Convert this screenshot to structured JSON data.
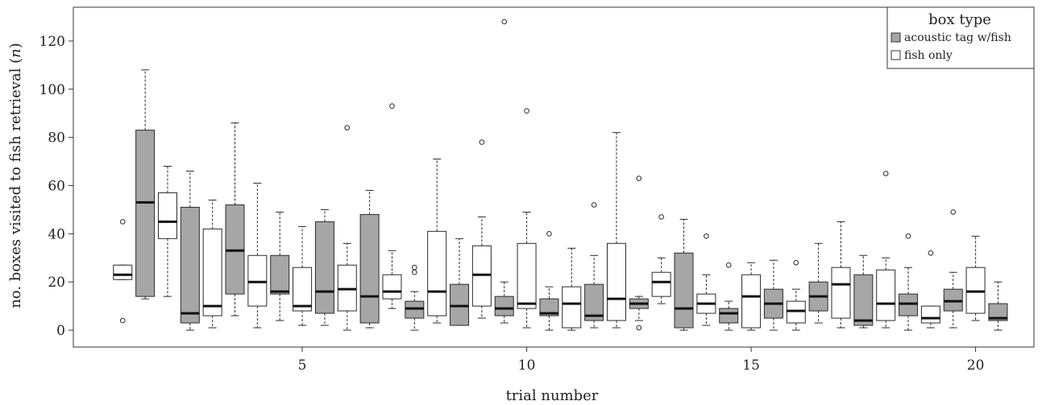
{
  "chart_data": {
    "type": "box",
    "xlabel": "trial number",
    "ylabel": "no. boxes visited to fish retrieval (n)",
    "ylabel_main": "no. boxes visited to fish retrieval (",
    "ylabel_var": "n",
    "ylabel_close": ")",
    "xlim": [
      -0.1,
      21.3
    ],
    "ylim": [
      -7,
      134
    ],
    "x_ticks": [
      5,
      10,
      15,
      20
    ],
    "y_ticks": [
      0,
      20,
      40,
      60,
      80,
      100,
      120
    ],
    "grid": false,
    "legend": {
      "title": "box type",
      "position": "top-right",
      "entries": [
        {
          "label": "acoustic tag w/fish",
          "color": "#a6a6a6"
        },
        {
          "label": "fish only",
          "color": "#ffffff"
        }
      ]
    },
    "colors": {
      "acoustic": "#a6a6a6",
      "fishonly": "#ffffff",
      "line": "#2a2a2a"
    },
    "boxes": [
      {
        "x": 1.0,
        "type": "fishonly",
        "min": 21,
        "q1": 21,
        "median": 23,
        "q3": 27,
        "max": 27,
        "outliers": [
          45,
          4
        ]
      },
      {
        "x": 1.5,
        "type": "acoustic",
        "min": 13,
        "q1": 14,
        "median": 53,
        "q3": 83,
        "max": 108,
        "outliers": []
      },
      {
        "x": 2.0,
        "type": "fishonly",
        "min": 14,
        "q1": 38,
        "median": 45,
        "q3": 57,
        "max": 68,
        "outliers": []
      },
      {
        "x": 2.5,
        "type": "acoustic",
        "min": 0,
        "q1": 3,
        "median": 7,
        "q3": 51,
        "max": 66,
        "outliers": []
      },
      {
        "x": 3.0,
        "type": "fishonly",
        "min": 1,
        "q1": 6,
        "median": 10,
        "q3": 42,
        "max": 54,
        "outliers": []
      },
      {
        "x": 3.5,
        "type": "acoustic",
        "min": 6,
        "q1": 15,
        "median": 33,
        "q3": 52,
        "max": 86,
        "outliers": []
      },
      {
        "x": 4.0,
        "type": "fishonly",
        "min": 1,
        "q1": 10,
        "median": 20,
        "q3": 31,
        "max": 61,
        "outliers": []
      },
      {
        "x": 4.5,
        "type": "acoustic",
        "min": 4,
        "q1": 15,
        "median": 16,
        "q3": 31,
        "max": 49,
        "outliers": []
      },
      {
        "x": 5.0,
        "type": "fishonly",
        "min": 2,
        "q1": 8,
        "median": 10,
        "q3": 26,
        "max": 43,
        "outliers": []
      },
      {
        "x": 5.5,
        "type": "acoustic",
        "min": 2,
        "q1": 7,
        "median": 16,
        "q3": 45,
        "max": 50,
        "outliers": []
      },
      {
        "x": 6.0,
        "type": "fishonly",
        "min": 0,
        "q1": 8,
        "median": 17,
        "q3": 27,
        "max": 36,
        "outliers": [
          84
        ]
      },
      {
        "x": 6.5,
        "type": "acoustic",
        "min": 1,
        "q1": 3,
        "median": 14,
        "q3": 48,
        "max": 58,
        "outliers": []
      },
      {
        "x": 7.0,
        "type": "fishonly",
        "min": 9,
        "q1": 13,
        "median": 16,
        "q3": 23,
        "max": 33,
        "outliers": [
          93
        ]
      },
      {
        "x": 7.5,
        "type": "acoustic",
        "min": 0,
        "q1": 5,
        "median": 9,
        "q3": 12,
        "max": 16,
        "outliers": [
          26,
          24
        ]
      },
      {
        "x": 8.0,
        "type": "fishonly",
        "min": 3,
        "q1": 6,
        "median": 16,
        "q3": 41,
        "max": 71,
        "outliers": []
      },
      {
        "x": 8.5,
        "type": "acoustic",
        "min": 2,
        "q1": 2,
        "median": 10,
        "q3": 19,
        "max": 38,
        "outliers": []
      },
      {
        "x": 9.0,
        "type": "fishonly",
        "min": 5,
        "q1": 10,
        "median": 23,
        "q3": 35,
        "max": 47,
        "outliers": [
          78
        ]
      },
      {
        "x": 9.5,
        "type": "acoustic",
        "min": 3,
        "q1": 6,
        "median": 9,
        "q3": 14,
        "max": 20,
        "outliers": [
          128
        ]
      },
      {
        "x": 10.0,
        "type": "fishonly",
        "min": 1,
        "q1": 9,
        "median": 11,
        "q3": 36,
        "max": 49,
        "outliers": [
          91
        ]
      },
      {
        "x": 10.5,
        "type": "acoustic",
        "min": 0,
        "q1": 6,
        "median": 7,
        "q3": 13,
        "max": 18,
        "outliers": [
          40
        ]
      },
      {
        "x": 11.0,
        "type": "fishonly",
        "min": 0,
        "q1": 1,
        "median": 11,
        "q3": 18,
        "max": 34,
        "outliers": []
      },
      {
        "x": 11.5,
        "type": "acoustic",
        "min": 1,
        "q1": 4,
        "median": 6,
        "q3": 19,
        "max": 31,
        "outliers": [
          52
        ]
      },
      {
        "x": 12.0,
        "type": "fishonly",
        "min": 1,
        "q1": 4,
        "median": 13,
        "q3": 36,
        "max": 82,
        "outliers": []
      },
      {
        "x": 12.5,
        "type": "acoustic",
        "min": 4,
        "q1": 9,
        "median": 11,
        "q3": 13,
        "max": 14,
        "outliers": [
          63,
          1
        ]
      },
      {
        "x": 13.0,
        "type": "fishonly",
        "min": 11,
        "q1": 14,
        "median": 20,
        "q3": 24,
        "max": 30,
        "outliers": [
          47
        ]
      },
      {
        "x": 13.5,
        "type": "acoustic",
        "min": 0,
        "q1": 1,
        "median": 9,
        "q3": 32,
        "max": 46,
        "outliers": []
      },
      {
        "x": 14.0,
        "type": "fishonly",
        "min": 2,
        "q1": 7,
        "median": 11,
        "q3": 15,
        "max": 23,
        "outliers": [
          39
        ]
      },
      {
        "x": 14.5,
        "type": "acoustic",
        "min": 0,
        "q1": 3,
        "median": 7,
        "q3": 9,
        "max": 12,
        "outliers": [
          27
        ]
      },
      {
        "x": 15.0,
        "type": "fishonly",
        "min": 0,
        "q1": 1,
        "median": 14,
        "q3": 23,
        "max": 28,
        "outliers": []
      },
      {
        "x": 15.5,
        "type": "acoustic",
        "min": 0,
        "q1": 5,
        "median": 11,
        "q3": 17,
        "max": 29,
        "outliers": []
      },
      {
        "x": 16.0,
        "type": "fishonly",
        "min": 0,
        "q1": 3,
        "median": 8,
        "q3": 12,
        "max": 17,
        "outliers": [
          28
        ]
      },
      {
        "x": 16.5,
        "type": "acoustic",
        "min": 3,
        "q1": 8,
        "median": 14,
        "q3": 20,
        "max": 36,
        "outliers": []
      },
      {
        "x": 17.0,
        "type": "fishonly",
        "min": 1,
        "q1": 5,
        "median": 19,
        "q3": 26,
        "max": 45,
        "outliers": []
      },
      {
        "x": 17.5,
        "type": "acoustic",
        "min": 1,
        "q1": 2,
        "median": 4,
        "q3": 23,
        "max": 31,
        "outliers": []
      },
      {
        "x": 18.0,
        "type": "fishonly",
        "min": 1,
        "q1": 4,
        "median": 11,
        "q3": 25,
        "max": 30,
        "outliers": [
          65
        ]
      },
      {
        "x": 18.5,
        "type": "acoustic",
        "min": 0,
        "q1": 6,
        "median": 11,
        "q3": 15,
        "max": 26,
        "outliers": [
          39
        ]
      },
      {
        "x": 19.0,
        "type": "fishonly",
        "min": 1,
        "q1": 3,
        "median": 5,
        "q3": 10,
        "max": 10,
        "outliers": [
          32
        ]
      },
      {
        "x": 19.5,
        "type": "acoustic",
        "min": 1,
        "q1": 8,
        "median": 12,
        "q3": 17,
        "max": 24,
        "outliers": [
          49
        ]
      },
      {
        "x": 20.0,
        "type": "fishonly",
        "min": 4,
        "q1": 7,
        "median": 16,
        "q3": 26,
        "max": 39,
        "outliers": []
      },
      {
        "x": 20.5,
        "type": "acoustic",
        "min": 0,
        "q1": 4,
        "median": 5,
        "q3": 11,
        "max": 20,
        "outliers": []
      }
    ]
  }
}
